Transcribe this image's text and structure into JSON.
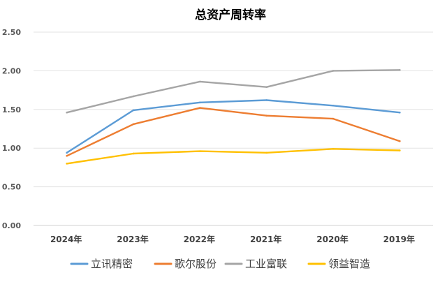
{
  "chart_data": {
    "type": "line",
    "title": "总资产周转率",
    "xlabel": "",
    "ylabel": "",
    "categories": [
      "2024年",
      "2023年",
      "2022年",
      "2021年",
      "2020年",
      "2019年"
    ],
    "ylim": [
      0,
      2.5
    ],
    "yticks": [
      "0.00",
      "0.50",
      "1.00",
      "1.50",
      "2.00",
      "2.50"
    ],
    "grid": true,
    "legend_position": "bottom",
    "series": [
      {
        "name": "立讯精密",
        "color": "#5B9BD5",
        "values": [
          0.94,
          1.49,
          1.59,
          1.62,
          1.55,
          1.46
        ]
      },
      {
        "name": "歌尔股份",
        "color": "#ED7D31",
        "values": [
          0.9,
          1.31,
          1.52,
          1.42,
          1.38,
          1.09
        ]
      },
      {
        "name": "工业富联",
        "color": "#A5A5A5",
        "values": [
          1.46,
          1.67,
          1.86,
          1.79,
          2.0,
          2.01
        ]
      },
      {
        "name": "领益智造",
        "color": "#FFC000",
        "values": [
          0.8,
          0.93,
          0.96,
          0.94,
          0.99,
          0.97
        ]
      }
    ]
  }
}
